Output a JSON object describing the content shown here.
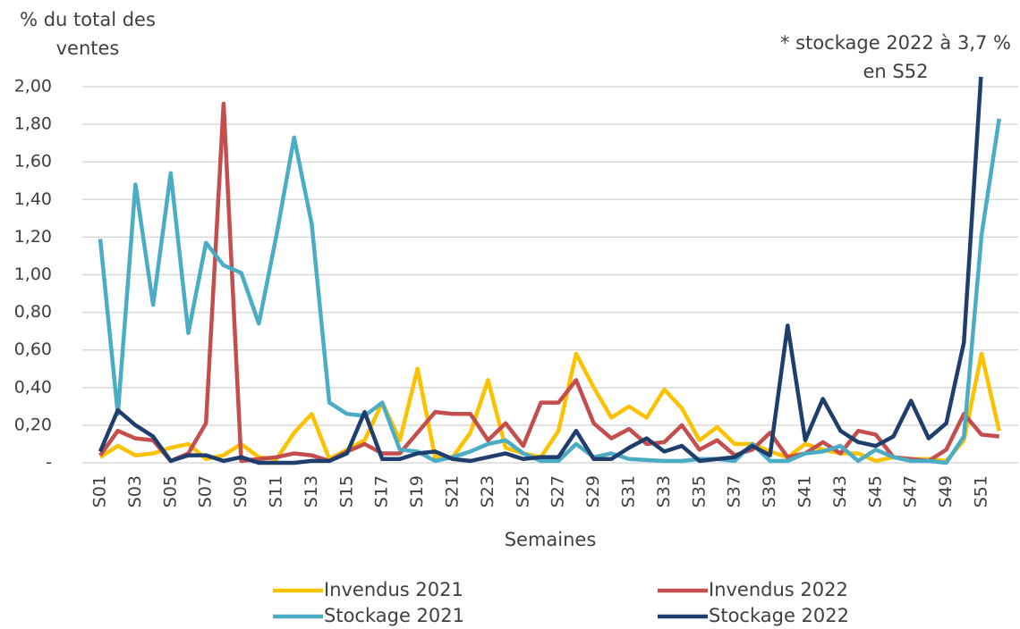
{
  "chart_data": {
    "type": "line",
    "ylabel": "% du total des ventes",
    "annotation": "* stockage 2022 à 3,7 % en S52",
    "xlabel": "Semaines",
    "categories": [
      "S01",
      null,
      "S03",
      null,
      "S05",
      null,
      "S07",
      null,
      "S09",
      null,
      "S11",
      null,
      "S13",
      null,
      "S15",
      null,
      "S17",
      null,
      "S19",
      null,
      "S21",
      null,
      "S23",
      null,
      "S25",
      null,
      "S27",
      null,
      "S29",
      null,
      "S31",
      null,
      "S33",
      null,
      "S35",
      null,
      "S37",
      null,
      "S39",
      null,
      "S41",
      null,
      "S43",
      null,
      "S45",
      null,
      "S47",
      null,
      "S49",
      null,
      "S51",
      null
    ],
    "ylim": [
      0,
      2
    ],
    "yticks": [
      {
        "value": 0,
        "label": "-"
      },
      {
        "value": 0.2,
        "label": "0,20"
      },
      {
        "value": 0.4,
        "label": "0,40"
      },
      {
        "value": 0.6,
        "label": "0,60"
      },
      {
        "value": 0.8,
        "label": "0,80"
      },
      {
        "value": 1,
        "label": "1,00"
      },
      {
        "value": 1.2,
        "label": "1,20"
      },
      {
        "value": 1.4,
        "label": "1,40"
      },
      {
        "value": 1.6,
        "label": "1,60"
      },
      {
        "value": 1.8,
        "label": "1,80"
      },
      {
        "value": 2,
        "label": "2,00"
      }
    ],
    "grid": true,
    "legend": "bottom",
    "series": [
      {
        "name": "Invendus 2021",
        "color": "#fcc200",
        "values": [
          0.03,
          0.09,
          0.04,
          0.05,
          0.08,
          0.1,
          0.02,
          0.04,
          0.1,
          0.03,
          0.02,
          0.16,
          0.26,
          0.02,
          0.07,
          0.12,
          0.32,
          0.12,
          0.5,
          0.03,
          0.03,
          0.16,
          0.44,
          0.08,
          0.05,
          0.03,
          0.17,
          0.58,
          0.4,
          0.24,
          0.3,
          0.24,
          0.39,
          0.29,
          0.12,
          0.19,
          0.1,
          0.1,
          0.06,
          0.03,
          0.1,
          0.07,
          0.05,
          0.05,
          0.01,
          0.03,
          0.02,
          0.02,
          0.01,
          0.12,
          0.58,
          0.17
        ]
      },
      {
        "name": "Invendus 2022",
        "color": "#c44d4e",
        "values": [
          0.04,
          0.17,
          0.13,
          0.12,
          0.01,
          0.05,
          0.21,
          1.91,
          0.01,
          0.02,
          0.03,
          0.05,
          0.04,
          0.01,
          0.06,
          0.1,
          0.05,
          0.05,
          0.16,
          0.27,
          0.26,
          0.26,
          0.12,
          0.21,
          0.09,
          0.32,
          0.32,
          0.44,
          0.21,
          0.13,
          0.18,
          0.1,
          0.11,
          0.2,
          0.07,
          0.12,
          0.04,
          0.07,
          0.16,
          0.03,
          0.05,
          0.11,
          0.05,
          0.17,
          0.15,
          0.03,
          0.02,
          0.01,
          0.07,
          0.26,
          0.15,
          0.14
        ]
      },
      {
        "name": "Stockage 2021",
        "color": "#4bacc6",
        "values": [
          1.19,
          0.26,
          1.48,
          0.84,
          1.54,
          0.69,
          1.17,
          1.05,
          1.01,
          0.74,
          1.21,
          1.73,
          1.27,
          0.32,
          0.26,
          0.25,
          0.32,
          0.07,
          0.06,
          0.01,
          0.03,
          0.06,
          0.1,
          0.12,
          0.05,
          0.01,
          0.01,
          0.1,
          0.03,
          0.05,
          0.02,
          0.015,
          0.01,
          0.01,
          0.02,
          0.02,
          0.01,
          0.1,
          0.01,
          0.01,
          0.05,
          0.06,
          0.09,
          0.01,
          0.07,
          0.03,
          0.01,
          0.01,
          0,
          0.14,
          1.21,
          1.83
        ]
      },
      {
        "name": "Stockage 2022",
        "color": "#1f3e6e",
        "values": [
          0.06,
          0.28,
          0.2,
          0.14,
          0.01,
          0.04,
          0.04,
          0.01,
          0.03,
          0,
          0,
          0,
          0.01,
          0.01,
          0.05,
          0.27,
          0.02,
          0.02,
          0.05,
          0.06,
          0.02,
          0.01,
          0.03,
          0.05,
          0.02,
          0.03,
          0.03,
          0.17,
          0.02,
          0.02,
          0.08,
          0.13,
          0.06,
          0.09,
          0.01,
          0.02,
          0.03,
          0.09,
          0.04,
          0.73,
          0.12,
          0.34,
          0.17,
          0.11,
          0.09,
          0.14,
          0.33,
          0.13,
          0.21,
          0.64,
          2.1,
          3.7
        ]
      }
    ]
  }
}
